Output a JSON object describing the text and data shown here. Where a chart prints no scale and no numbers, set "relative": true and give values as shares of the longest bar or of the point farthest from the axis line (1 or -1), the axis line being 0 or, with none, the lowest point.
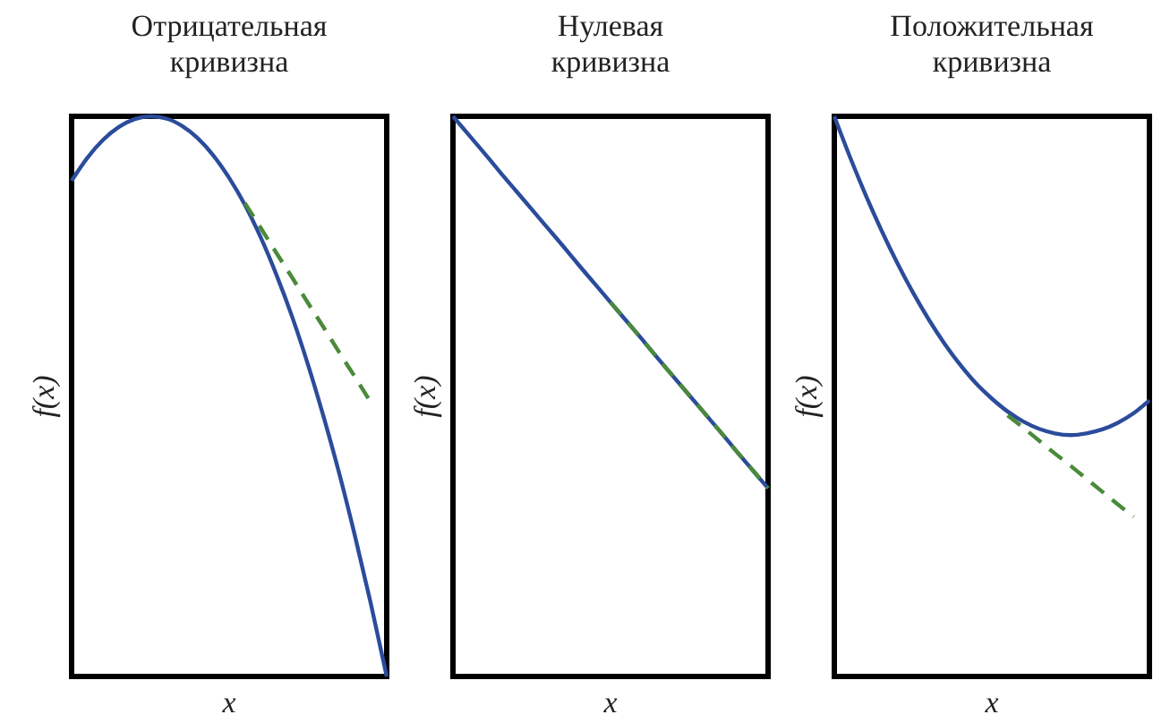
{
  "chart_data": [
    {
      "type": "line",
      "title": "Отрицательная кривизна",
      "xlabel": "x",
      "ylabel": "f(x)",
      "relative": true,
      "grid": false,
      "marker": "none",
      "categories": [
        null,
        null,
        null,
        null,
        null,
        null,
        null,
        null,
        null,
        null,
        null,
        null,
        null,
        null,
        null,
        null,
        null,
        null,
        null,
        null,
        null
      ],
      "series": [
        {
          "color": "#2b4c9b",
          "line_style": "solid",
          "values": [
            0.885,
            0.926,
            0.958,
            0.981,
            0.995,
            1,
            0.996,
            0.983,
            0.961,
            0.93,
            0.89,
            0.842,
            0.784,
            0.717,
            0.642,
            0.557,
            0.463,
            0.361,
            0.249,
            0.129,
            0
          ]
        },
        {
          "color": "#4a8a3a",
          "line_style": "dashed",
          "values": [
            null,
            null,
            null,
            null,
            null,
            null,
            null,
            null,
            null,
            null,
            null,
            0.845,
            0.801,
            0.756,
            0.712,
            0.667,
            0.623,
            0.578,
            0.534,
            0.489,
            null
          ]
        }
      ]
    },
    {
      "type": "line",
      "title": "Нулевая кривизна",
      "xlabel": "x",
      "ylabel": "f(x)",
      "relative": true,
      "grid": false,
      "marker": "none",
      "categories": [
        null,
        null,
        null,
        null,
        null,
        null,
        null,
        null,
        null,
        null,
        null,
        null,
        null,
        null,
        null,
        null,
        null,
        null,
        null,
        null,
        null
      ],
      "series": [
        {
          "color": "#2b4c9b",
          "line_style": "solid",
          "values": [
            1,
            0.967,
            0.934,
            0.9,
            0.867,
            0.834,
            0.801,
            0.768,
            0.734,
            0.701,
            0.668,
            0.635,
            0.602,
            0.568,
            0.535,
            0.502,
            0.469,
            0.436,
            0.402,
            0.369,
            0.336
          ]
        },
        {
          "color": "#4a8a3a",
          "line_style": "dashed",
          "values": [
            null,
            null,
            null,
            null,
            null,
            null,
            null,
            null,
            null,
            null,
            0.668,
            0.635,
            0.602,
            0.568,
            0.535,
            0.502,
            0.469,
            0.436,
            0.402,
            0.369,
            0.336
          ]
        }
      ]
    },
    {
      "type": "line",
      "title": "Положительная кривизна",
      "xlabel": "x",
      "ylabel": "f(x)",
      "relative": true,
      "grid": false,
      "marker": "none",
      "categories": [
        null,
        null,
        null,
        null,
        null,
        null,
        null,
        null,
        null,
        null,
        null,
        null,
        null,
        null,
        null,
        null,
        null,
        null,
        null,
        null,
        null
      ],
      "series": [
        {
          "color": "#2b4c9b",
          "line_style": "solid",
          "values": [
            1,
            0.927,
            0.859,
            0.796,
            0.738,
            0.685,
            0.637,
            0.594,
            0.556,
            0.523,
            0.496,
            0.473,
            0.455,
            0.442,
            0.434,
            0.431,
            0.434,
            0.441,
            0.453,
            0.47,
            0.493
          ]
        },
        {
          "color": "#4a8a3a",
          "line_style": "dashed",
          "values": [
            null,
            null,
            null,
            null,
            null,
            null,
            null,
            null,
            null,
            null,
            null,
            0.466,
            0.444,
            0.421,
            0.398,
            0.376,
            0.353,
            0.33,
            0.307,
            0.285,
            null
          ]
        }
      ]
    }
  ]
}
